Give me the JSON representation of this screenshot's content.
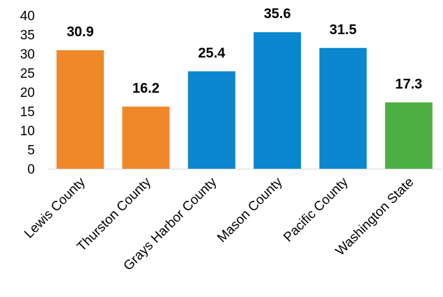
{
  "chart_data": {
    "type": "bar",
    "title": "",
    "xlabel": "",
    "ylabel": "",
    "ylim": [
      0,
      40
    ],
    "yticks": [
      0,
      5,
      10,
      15,
      20,
      25,
      30,
      35,
      40
    ],
    "grid": false,
    "legend": "none",
    "categories": [
      "Lewis County",
      "Thurston County",
      "Grays Harbor County",
      "Mason County",
      "Pacific County",
      "Washington State"
    ],
    "values": [
      30.9,
      16.2,
      25.4,
      35.6,
      31.5,
      17.3
    ],
    "data_labels": [
      "30.9",
      "16.2",
      "25.4",
      "35.6",
      "31.5",
      "17.3"
    ],
    "colors": [
      "#F0882A",
      "#F0882A",
      "#0A87CE",
      "#0A87CE",
      "#0A87CE",
      "#4CAF41"
    ]
  }
}
